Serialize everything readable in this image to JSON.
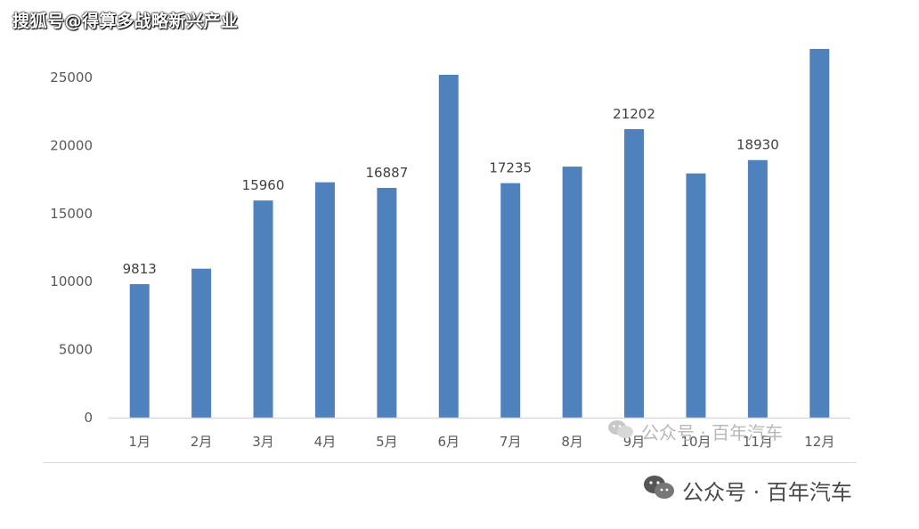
{
  "watermarks": {
    "top": "搜狐号@得算多战略新兴产业",
    "mid": "公众号 · 百年汽车",
    "bottom": "公众号 · 百年汽车"
  },
  "chart_data": {
    "type": "bar",
    "categories": [
      "1月",
      "2月",
      "3月",
      "4月",
      "5月",
      "6月",
      "7月",
      "8月",
      "9月",
      "10月",
      "11月",
      "12月"
    ],
    "values": [
      9813,
      10950,
      15960,
      17300,
      16887,
      25200,
      17235,
      18450,
      21202,
      17950,
      18930,
      27100
    ],
    "data_labels": [
      "9813",
      "",
      "15960",
      "",
      "16887",
      "",
      "17235",
      "",
      "21202",
      "",
      "18930",
      ""
    ],
    "yticks": [
      "0",
      "5000",
      "10000",
      "15000",
      "20000",
      "25000"
    ],
    "ylim": [
      0,
      25000
    ],
    "title": "",
    "xlabel": "",
    "ylabel": "",
    "grid": false,
    "bar_color": "#4f81bd"
  },
  "colors": {
    "bar": "#4f81bd",
    "axis": "#d9d9d9",
    "tick_text": "#595959",
    "label_text": "#404040"
  },
  "icons": {
    "chat": "wechat-icon"
  }
}
